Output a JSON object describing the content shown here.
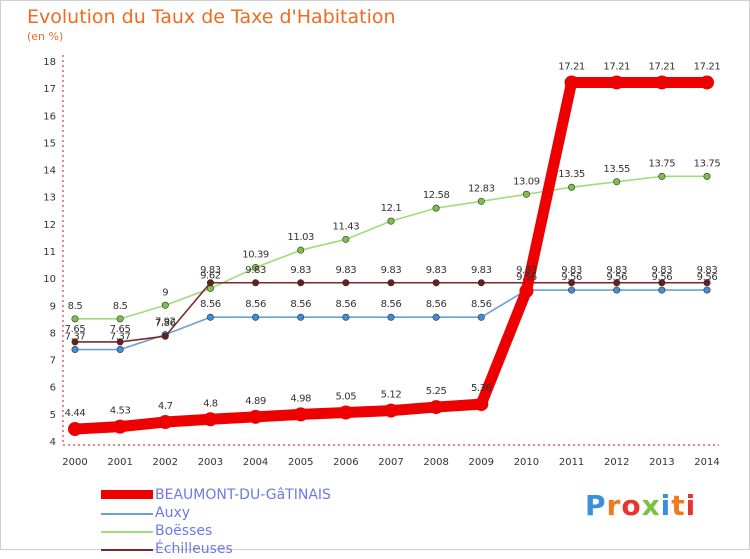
{
  "header": {
    "title": "Evolution du Taux de Taxe d'Habitation",
    "unit": "(en %)"
  },
  "brand": {
    "text": "Proxiti",
    "colors": [
      "#3c8ed8",
      "#f07b1d",
      "#e8332f",
      "#7cc142",
      "#3c8ed8",
      "#f07b1d",
      "#e8332f"
    ]
  },
  "chart_data": {
    "type": "line",
    "title": "Evolution du Taux de Taxe d'Habitation",
    "subtitle": "(en %)",
    "xlabel": "",
    "ylabel": "",
    "x": [
      2000,
      2001,
      2002,
      2003,
      2004,
      2005,
      2006,
      2007,
      2008,
      2009,
      2010,
      2011,
      2012,
      2013,
      2014
    ],
    "x_tick_labels": [
      "2000",
      "2001",
      "2002",
      "2003",
      "2004",
      "2005",
      "2006",
      "2007",
      "2008",
      "2009",
      "2010",
      "2011",
      "2012",
      "2013",
      "2014"
    ],
    "ylim": [
      4,
      18
    ],
    "y_ticks": [
      4,
      5,
      6,
      7,
      8,
      9,
      10,
      11,
      12,
      13,
      14,
      15,
      16,
      17,
      18
    ],
    "grid": false,
    "legend": "bottom-left",
    "series": [
      {
        "name": "BEAUMONT-DU-GâTINAIS",
        "color": "#ee0000",
        "marker": "#ee0000",
        "width": "thick",
        "values": [
          4.44,
          4.53,
          4.7,
          4.8,
          4.89,
          4.98,
          5.05,
          5.12,
          5.25,
          5.36,
          9.53,
          17.21,
          17.21,
          17.21,
          17.21
        ],
        "labels": [
          "4.44",
          "4.53",
          "4.7",
          "4.8",
          "4.89",
          "4.98",
          "5.05",
          "5.12",
          "5.25",
          "5.36",
          "",
          "17.21",
          "17.21",
          "17.21",
          "17.21"
        ]
      },
      {
        "name": "Auxy",
        "color": "#6aa0d9",
        "marker": "#3f8fd6",
        "width": "thin",
        "values": [
          7.37,
          7.37,
          7.92,
          8.56,
          8.56,
          8.56,
          8.56,
          8.56,
          8.56,
          8.56,
          9.56,
          9.56,
          9.56,
          9.56,
          9.56
        ],
        "labels": [
          "7.37",
          "7.37",
          "7.92",
          "8.56",
          "8.56",
          "8.56",
          "8.56",
          "8.56",
          "8.56",
          "8.56",
          "9.56",
          "9.56",
          "9.56",
          "9.56",
          "9.56"
        ]
      },
      {
        "name": "Boësses",
        "color": "#9fdc79",
        "marker": "#7cc142",
        "width": "thin",
        "values": [
          8.5,
          8.5,
          9,
          9.62,
          10.39,
          11.03,
          11.43,
          12.1,
          12.58,
          12.83,
          13.09,
          13.35,
          13.55,
          13.75,
          13.75
        ],
        "labels": [
          "8.5",
          "8.5",
          "9",
          "9.62",
          "10.39",
          "11.03",
          "11.43",
          "12.1",
          "12.58",
          "12.83",
          "13.09",
          "13.35",
          "13.55",
          "13.75",
          "13.75"
        ]
      },
      {
        "name": "Échilleuses",
        "color": "#7a2a2a",
        "marker": "#6b1d1d",
        "width": "thin",
        "values": [
          7.65,
          7.65,
          7.86,
          9.83,
          9.83,
          9.83,
          9.83,
          9.83,
          9.83,
          9.83,
          9.83,
          9.83,
          9.83,
          9.83,
          9.83
        ],
        "labels": [
          "7.65",
          "7.65",
          "7.86",
          "9.83",
          "9.83",
          "9.83",
          "9.83",
          "9.83",
          "9.83",
          "9.83",
          "9.83",
          "9.83",
          "9.83",
          "9.83",
          "9.83"
        ]
      }
    ]
  }
}
